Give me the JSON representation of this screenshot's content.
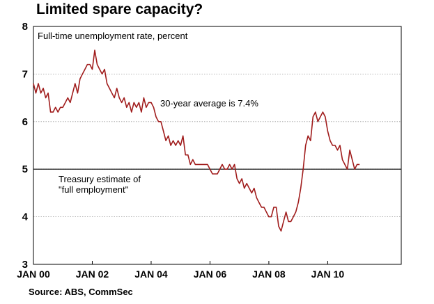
{
  "title": "Limited spare capacity?",
  "source": "Source: ABS, CommSec",
  "chart_data": {
    "type": "line",
    "subtitle": "Full-time unemployment rate, percent",
    "xlabel": "",
    "ylabel": "",
    "ylim": [
      3,
      8
    ],
    "yticks": [
      3,
      4,
      5,
      6,
      7,
      8
    ],
    "xlim": [
      "2000-01",
      "2012-07"
    ],
    "xticks": [
      {
        "label": "JAN 00",
        "date": "2000-01"
      },
      {
        "label": "JAN 02",
        "date": "2002-01"
      },
      {
        "label": "JAN 04",
        "date": "2004-01"
      },
      {
        "label": "JAN 06",
        "date": "2006-01"
      },
      {
        "label": "JAN 08",
        "date": "2008-01"
      },
      {
        "label": "JAN 10",
        "date": "2010-01"
      }
    ],
    "grid": true,
    "reference_line": {
      "y": 5.0,
      "label_lines": [
        "Treasury estimate of",
        "\"full employment\""
      ]
    },
    "annotation": "30-year average is 7.4%",
    "series": [
      {
        "color": "#a01c1c",
        "points": [
          [
            "2000-01",
            6.8
          ],
          [
            "2000-02",
            6.6
          ],
          [
            "2000-03",
            6.8
          ],
          [
            "2000-04",
            6.6
          ],
          [
            "2000-05",
            6.7
          ],
          [
            "2000-06",
            6.5
          ],
          [
            "2000-07",
            6.6
          ],
          [
            "2000-08",
            6.2
          ],
          [
            "2000-09",
            6.2
          ],
          [
            "2000-10",
            6.3
          ],
          [
            "2000-11",
            6.2
          ],
          [
            "2000-12",
            6.3
          ],
          [
            "2001-01",
            6.3
          ],
          [
            "2001-02",
            6.4
          ],
          [
            "2001-03",
            6.5
          ],
          [
            "2001-04",
            6.4
          ],
          [
            "2001-05",
            6.6
          ],
          [
            "2001-06",
            6.8
          ],
          [
            "2001-07",
            6.6
          ],
          [
            "2001-08",
            6.9
          ],
          [
            "2001-09",
            7.0
          ],
          [
            "2001-10",
            7.1
          ],
          [
            "2001-11",
            7.2
          ],
          [
            "2001-12",
            7.2
          ],
          [
            "2002-01",
            7.1
          ],
          [
            "2002-02",
            7.5
          ],
          [
            "2002-03",
            7.2
          ],
          [
            "2002-04",
            7.1
          ],
          [
            "2002-05",
            7.0
          ],
          [
            "2002-06",
            7.1
          ],
          [
            "2002-07",
            6.8
          ],
          [
            "2002-08",
            6.7
          ],
          [
            "2002-09",
            6.6
          ],
          [
            "2002-10",
            6.5
          ],
          [
            "2002-11",
            6.7
          ],
          [
            "2002-12",
            6.5
          ],
          [
            "2003-01",
            6.4
          ],
          [
            "2003-02",
            6.5
          ],
          [
            "2003-03",
            6.3
          ],
          [
            "2003-04",
            6.4
          ],
          [
            "2003-05",
            6.2
          ],
          [
            "2003-06",
            6.4
          ],
          [
            "2003-07",
            6.3
          ],
          [
            "2003-08",
            6.4
          ],
          [
            "2003-09",
            6.2
          ],
          [
            "2003-10",
            6.5
          ],
          [
            "2003-11",
            6.3
          ],
          [
            "2003-12",
            6.4
          ],
          [
            "2004-01",
            6.4
          ],
          [
            "2004-02",
            6.3
          ],
          [
            "2004-03",
            6.1
          ],
          [
            "2004-04",
            6.0
          ],
          [
            "2004-05",
            6.0
          ],
          [
            "2004-06",
            5.8
          ],
          [
            "2004-07",
            5.6
          ],
          [
            "2004-08",
            5.7
          ],
          [
            "2004-09",
            5.5
          ],
          [
            "2004-10",
            5.6
          ],
          [
            "2004-11",
            5.5
          ],
          [
            "2004-12",
            5.6
          ],
          [
            "2005-01",
            5.5
          ],
          [
            "2005-02",
            5.7
          ],
          [
            "2005-03",
            5.3
          ],
          [
            "2005-04",
            5.3
          ],
          [
            "2005-05",
            5.1
          ],
          [
            "2005-06",
            5.2
          ],
          [
            "2005-07",
            5.1
          ],
          [
            "2005-08",
            5.1
          ],
          [
            "2005-09",
            5.1
          ],
          [
            "2005-10",
            5.1
          ],
          [
            "2005-11",
            5.1
          ],
          [
            "2005-12",
            5.1
          ],
          [
            "2006-01",
            5.0
          ],
          [
            "2006-02",
            4.9
          ],
          [
            "2006-03",
            4.9
          ],
          [
            "2006-04",
            4.9
          ],
          [
            "2006-05",
            5.0
          ],
          [
            "2006-06",
            5.1
          ],
          [
            "2006-07",
            5.0
          ],
          [
            "2006-08",
            5.0
          ],
          [
            "2006-09",
            5.1
          ],
          [
            "2006-10",
            5.0
          ],
          [
            "2006-11",
            5.1
          ],
          [
            "2006-12",
            4.8
          ],
          [
            "2007-01",
            4.7
          ],
          [
            "2007-02",
            4.8
          ],
          [
            "2007-03",
            4.6
          ],
          [
            "2007-04",
            4.7
          ],
          [
            "2007-05",
            4.6
          ],
          [
            "2007-06",
            4.5
          ],
          [
            "2007-07",
            4.6
          ],
          [
            "2007-08",
            4.4
          ],
          [
            "2007-09",
            4.3
          ],
          [
            "2007-10",
            4.2
          ],
          [
            "2007-11",
            4.2
          ],
          [
            "2007-12",
            4.1
          ],
          [
            "2008-01",
            4.0
          ],
          [
            "2008-02",
            4.0
          ],
          [
            "2008-03",
            4.2
          ],
          [
            "2008-04",
            4.2
          ],
          [
            "2008-05",
            3.8
          ],
          [
            "2008-06",
            3.7
          ],
          [
            "2008-07",
            3.9
          ],
          [
            "2008-08",
            4.1
          ],
          [
            "2008-09",
            3.9
          ],
          [
            "2008-10",
            3.9
          ],
          [
            "2008-11",
            4.0
          ],
          [
            "2008-12",
            4.1
          ],
          [
            "2009-01",
            4.3
          ],
          [
            "2009-02",
            4.6
          ],
          [
            "2009-03",
            5.0
          ],
          [
            "2009-04",
            5.5
          ],
          [
            "2009-05",
            5.7
          ],
          [
            "2009-06",
            5.6
          ],
          [
            "2009-07",
            6.1
          ],
          [
            "2009-08",
            6.2
          ],
          [
            "2009-09",
            6.0
          ],
          [
            "2009-10",
            6.1
          ],
          [
            "2009-11",
            6.2
          ],
          [
            "2009-12",
            6.1
          ],
          [
            "2010-01",
            5.8
          ],
          [
            "2010-02",
            5.6
          ],
          [
            "2010-03",
            5.5
          ],
          [
            "2010-04",
            5.5
          ],
          [
            "2010-05",
            5.4
          ],
          [
            "2010-06",
            5.5
          ],
          [
            "2010-07",
            5.2
          ],
          [
            "2010-08",
            5.1
          ],
          [
            "2010-09",
            5.0
          ],
          [
            "2010-10",
            5.4
          ],
          [
            "2010-11",
            5.2
          ],
          [
            "2010-12",
            5.0
          ],
          [
            "2011-01",
            5.1
          ],
          [
            "2011-02",
            5.1
          ]
        ]
      }
    ]
  }
}
